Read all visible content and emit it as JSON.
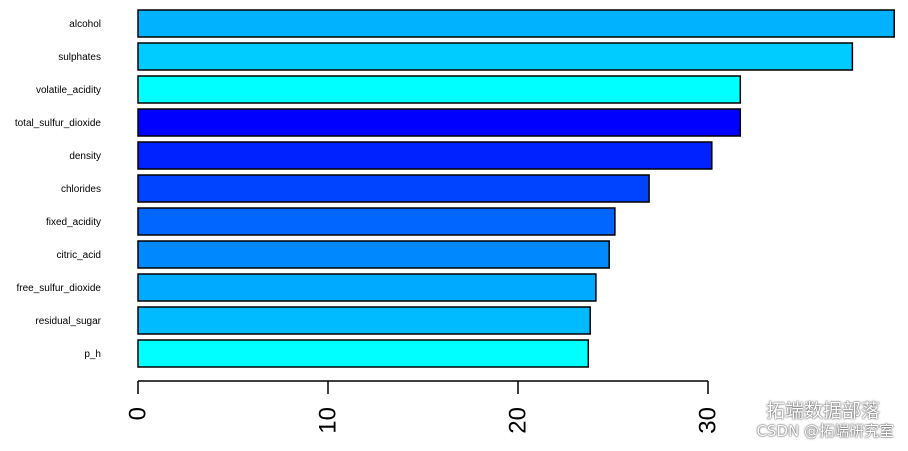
{
  "chart_data": {
    "type": "bar",
    "orientation": "horizontal",
    "categories": [
      "alcohol",
      "sulphates",
      "volatile_acidity",
      "total_sulfur_dioxide",
      "density",
      "chlorides",
      "fixed_acidity",
      "citric_acid",
      "free_sulfur_dioxide",
      "residual_sugar",
      "p_h"
    ],
    "values": [
      39.8,
      37.6,
      31.7,
      31.7,
      30.2,
      26.9,
      25.1,
      24.8,
      24.1,
      23.8,
      23.7
    ],
    "colors": [
      "#00b2ff",
      "#00ccff",
      "#00ffff",
      "#0000ff",
      "#0022ff",
      "#0044ff",
      "#0066ff",
      "#0088ff",
      "#00aaff",
      "#00bbff",
      "#00ffff"
    ],
    "xlim": [
      0,
      40
    ],
    "xticks": [
      "0",
      "10",
      "20",
      "30"
    ],
    "title": "",
    "xlabel": "",
    "ylabel": ""
  },
  "watermark": {
    "line1": "拓端数据部落",
    "line2": "CSDN @拓端研究室"
  }
}
